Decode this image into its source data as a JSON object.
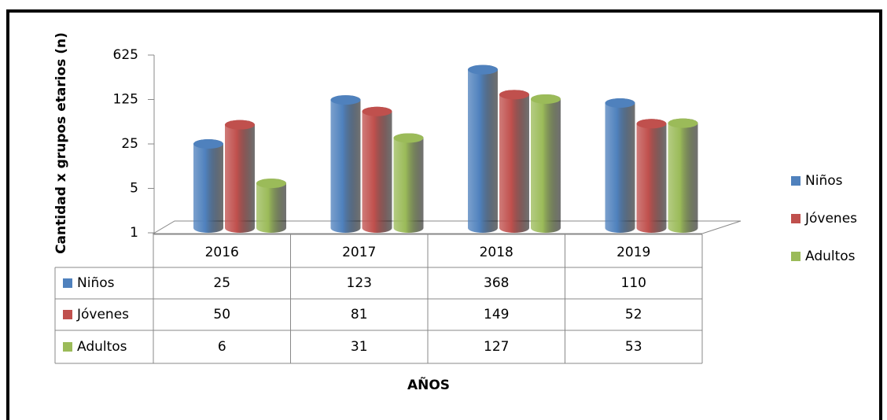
{
  "chart_data": {
    "type": "bar",
    "xlabel": "AÑOS",
    "ylabel": "Cantidad x grupos etarios (n)",
    "categories": [
      "2016",
      "2017",
      "2018",
      "2019"
    ],
    "series": [
      {
        "name": "Niños",
        "color": "#4f81bd",
        "values": [
          25,
          123,
          368,
          110
        ]
      },
      {
        "name": "Jóvenes",
        "color": "#c0504d",
        "values": [
          50,
          81,
          149,
          52
        ]
      },
      {
        "name": "Adultos",
        "color": "#9bbb59",
        "values": [
          6,
          31,
          127,
          53
        ]
      }
    ],
    "yscale": "log",
    "ylim": [
      1,
      625
    ],
    "yticks": [
      1,
      5,
      25,
      125,
      625
    ],
    "legend": "right",
    "data_table": true
  }
}
